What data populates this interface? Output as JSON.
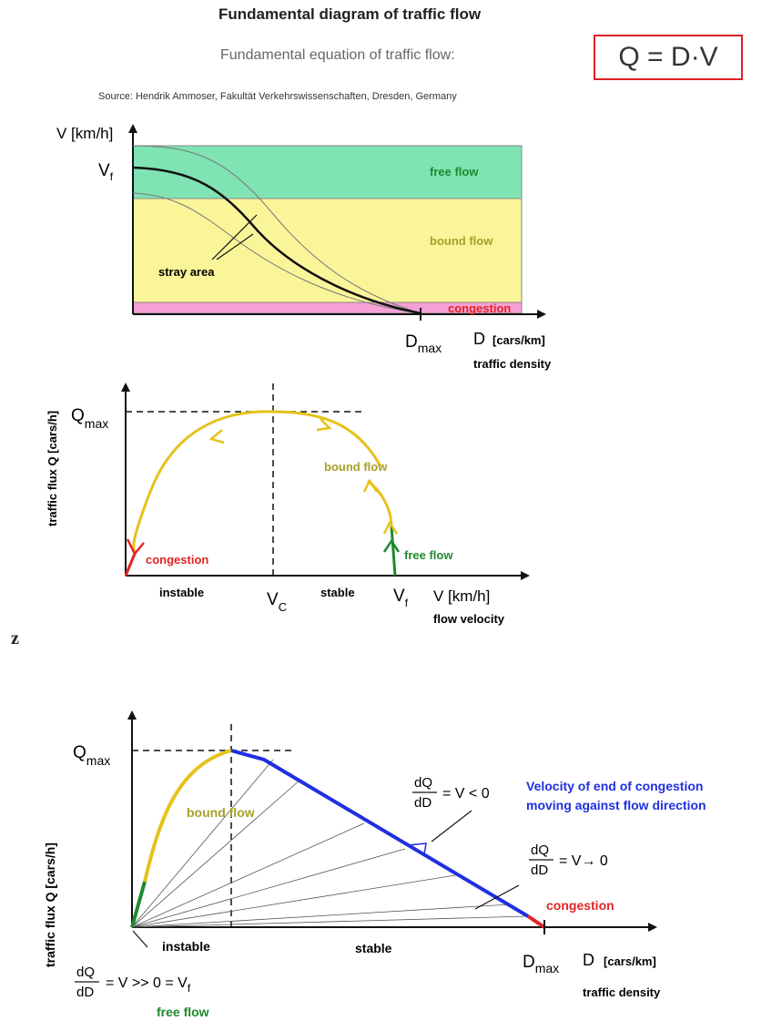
{
  "header": {
    "title": "Fundamental diagram of traffic flow",
    "equation_label": "Fundamental equation of traffic flow:",
    "formula": "Q = D·V",
    "source": "Source: Hendrik Ammoser, Fakultät Verkehrswissenschaften, Dresden, Germany"
  },
  "diagram1": {
    "y_axis": "V [km/h]",
    "vf": "V",
    "vf_sub": "f",
    "zones": {
      "free_flow": "free flow",
      "bound_flow": "bound flow",
      "congestion": "congestion"
    },
    "stray_area": "stray area",
    "dmax": "D",
    "dmax_sub": "max",
    "x_axis": "D",
    "x_axis_unit": "[cars/km]",
    "x_caption": "traffic density"
  },
  "diagram2": {
    "y_axis": "traffic flux Q [cars/h]",
    "qmax": "Q",
    "qmax_sub": "max",
    "bound_flow": "bound flow",
    "free_flow": "free flow",
    "congestion": "congestion",
    "instable": "instable",
    "vc": "V",
    "vc_sub": "C",
    "stable": "stable",
    "vf": "V",
    "vf_sub": "f",
    "x_axis": "V [km/h]",
    "x_caption": "flow velocity"
  },
  "separator": "z",
  "diagram3": {
    "y_axis": "traffic flux Q [cars/h]",
    "qmax": "Q",
    "qmax_sub": "max",
    "bound_flow": "bound flow",
    "slope1_num": "dQ",
    "slope1_den": "dD",
    "slope1_rhs": "= V < 0",
    "velocity_note_1": "Velocity of end of congestion",
    "velocity_note_2": "moving against flow direction",
    "slope2_num": "dQ",
    "slope2_den": "dD",
    "slope2_rhs": "= V→ 0",
    "congestion": "congestion",
    "instable": "instable",
    "stable": "stable",
    "dmax": "D",
    "dmax_sub": "max",
    "x_axis": "D",
    "x_axis_unit": "[cars/km]",
    "x_caption": "traffic density",
    "slope3_num": "dQ",
    "slope3_den": "dD",
    "slope3_rhs": "= V >> 0 = V",
    "slope3_sub": "f",
    "free_flow": "free flow"
  },
  "colors": {
    "free_flow_zone": "#7fe3b4",
    "bound_flow_zone": "#fbf59a",
    "congestion_zone": "#f5a0d6",
    "yellow_curve": "#e6c21a",
    "green": "#1e8a2e",
    "red": "#e02424",
    "blue": "#1f2fe0",
    "olive_text": "#a8a028"
  }
}
